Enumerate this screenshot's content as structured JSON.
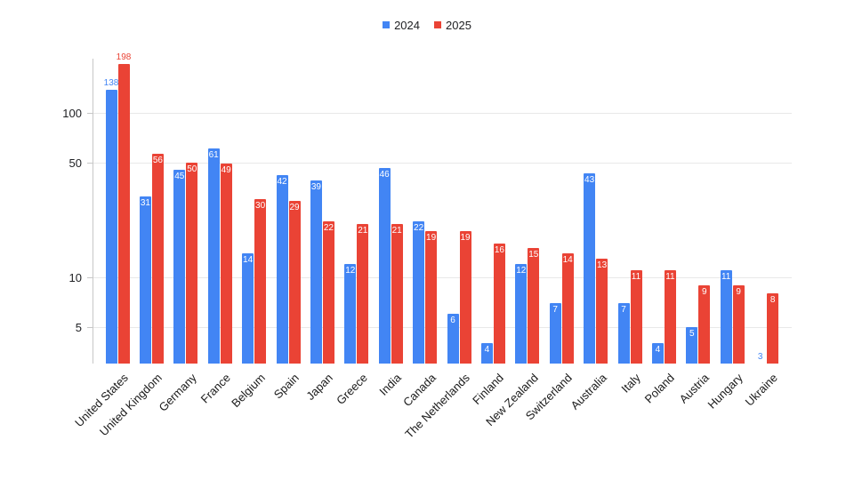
{
  "legend": {
    "items": [
      {
        "label": "2024",
        "color": "#4285f4"
      },
      {
        "label": "2025",
        "color": "#ea4335"
      }
    ]
  },
  "chart_data": {
    "type": "bar",
    "title": "",
    "xlabel": "",
    "ylabel": "",
    "categories": [
      "United States",
      "United Kingdom",
      "Germany",
      "France",
      "Belgium",
      "Spain",
      "Japan",
      "Greece",
      "India",
      "Canada",
      "The Netherlands",
      "Finland",
      "New Zealand",
      "Switzerland",
      "Australia",
      "Italy",
      "Poland",
      "Austria",
      "Hungary",
      "Ukraine"
    ],
    "series": [
      {
        "name": "2024",
        "color": "#4285f4",
        "values": [
          138,
          31,
          45,
          61,
          14,
          42,
          39,
          12,
          46,
          22,
          6,
          4,
          12,
          7,
          43,
          7,
          4,
          5,
          11,
          3
        ]
      },
      {
        "name": "2025",
        "color": "#ea4335",
        "values": [
          198,
          56,
          50,
          49,
          30,
          29,
          22,
          21,
          21,
          19,
          19,
          16,
          15,
          14,
          13,
          11,
          11,
          9,
          9,
          8
        ]
      }
    ],
    "y_axis": {
      "scale": "log",
      "min": 3,
      "ticks": [
        5,
        10,
        50,
        100
      ]
    },
    "legend_position": "top",
    "grid": true,
    "data_labels": "shown",
    "colors": {
      "background": "#ffffff",
      "gridline": "#e8e8e8",
      "axis_line": "#c7c7c7",
      "tick_label": "#202124",
      "category_label": "#1a1a1a",
      "inside_label": "#ffffff"
    }
  }
}
